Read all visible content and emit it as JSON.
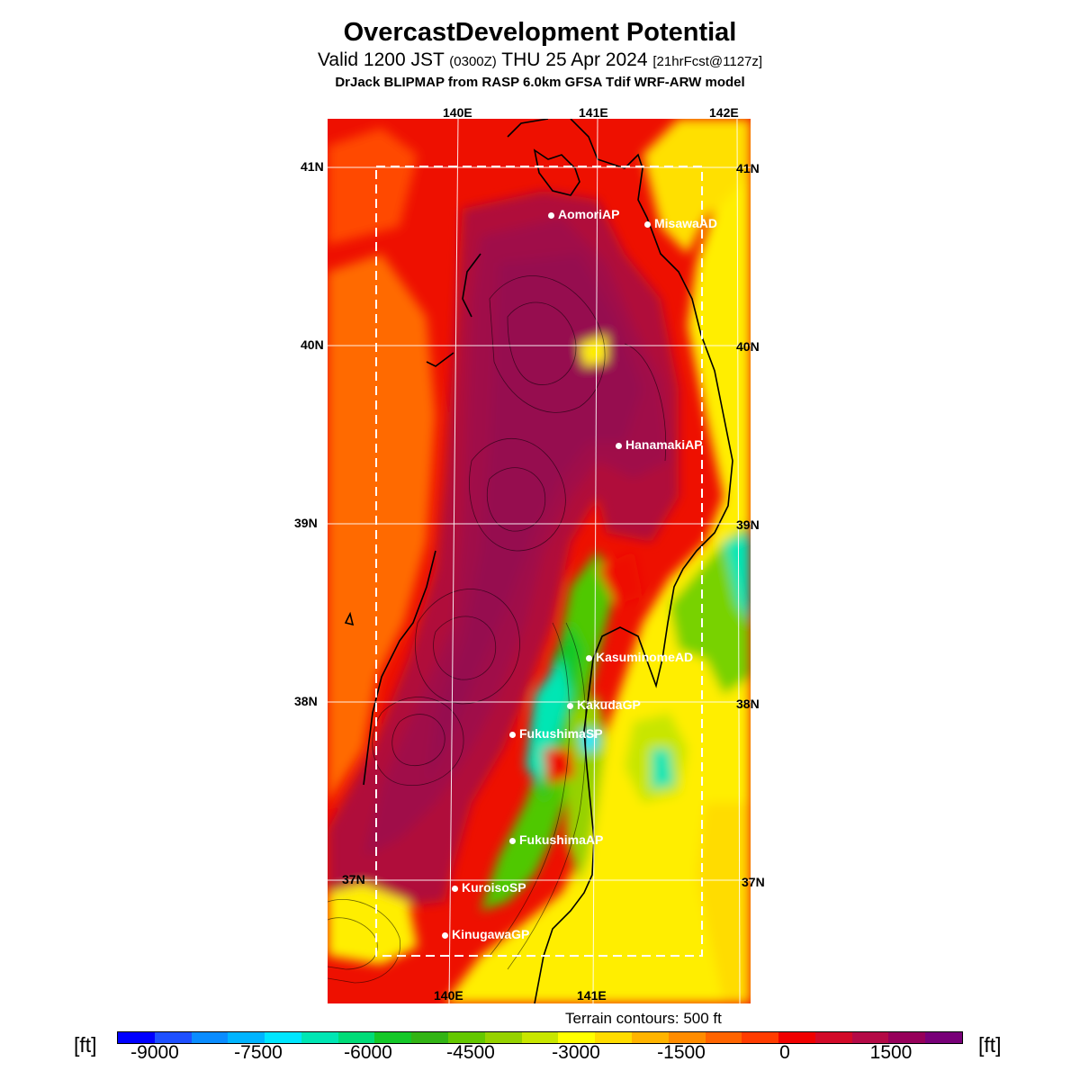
{
  "title": "OvercastDevelopment Potential",
  "subtitle": {
    "valid_prefix": "Valid 1200 JST",
    "utc": "(0300Z)",
    "date": "THU 25 Apr 2024",
    "fcst": "[21hrFcst@1127z]"
  },
  "model_line": "DrJack BLIPMAP from RASP 6.0km GFSA Tdif WRF-ARW model",
  "map": {
    "lon_labels": [
      "140E",
      "141E",
      "142E"
    ],
    "lat_labels": [
      "41N",
      "40N",
      "39N",
      "38N",
      "37N"
    ],
    "stations": [
      {
        "name": "AomoriAP"
      },
      {
        "name": "MisawaAD"
      },
      {
        "name": "HanamakiAP"
      },
      {
        "name": "KasuminomeAD"
      },
      {
        "name": "KakudaGP"
      },
      {
        "name": "FukushimaSP"
      },
      {
        "name": "FukushimaAP"
      },
      {
        "name": "KuroisoSP"
      },
      {
        "name": "KinugawaGP"
      }
    ]
  },
  "terrain_note": "Terrain contours: 500 ft",
  "colorbar": {
    "unit_left": "[ft]",
    "unit_right": "[ft]",
    "tick_labels": [
      "-9000",
      "-7500",
      "-6000",
      "-4500",
      "-3000",
      "-1500",
      "0",
      "1500"
    ],
    "colors": [
      "#0000ff",
      "#1e50ff",
      "#0a8cff",
      "#00b4ff",
      "#00e6ff",
      "#00e6b4",
      "#00dc78",
      "#14c828",
      "#32b414",
      "#64c800",
      "#96d200",
      "#c8e600",
      "#ffff00",
      "#ffdc00",
      "#ffb400",
      "#ff8c00",
      "#ff6400",
      "#ff3c00",
      "#f00000",
      "#d20a28",
      "#b40a46",
      "#96005a",
      "#780078"
    ]
  }
}
